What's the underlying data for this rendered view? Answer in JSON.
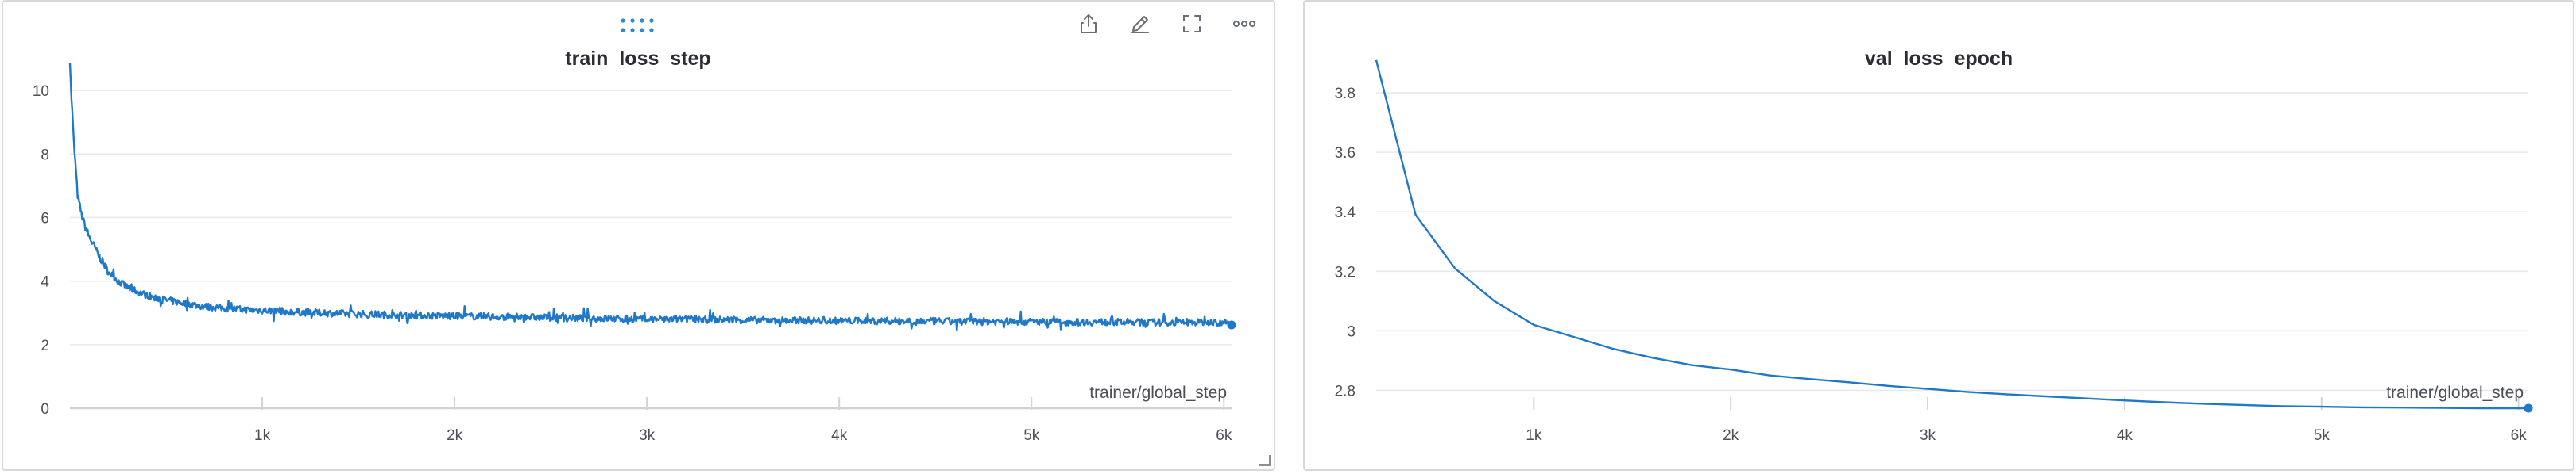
{
  "icons": [
    "drag-handle-icon",
    "share-icon",
    "edit-icon",
    "fullscreen-icon",
    "more-icon",
    "resize-icon"
  ],
  "colors": {
    "series": "#1f78c8",
    "grid": "#e8e9ec",
    "panel_border": "#d7d8dc",
    "accent": "#2a8ad4"
  },
  "chart_data": [
    {
      "type": "line",
      "title": "train_loss_step",
      "xlabel": "trainer/global_step",
      "ylabel": "",
      "xlim": [
        0,
        6040
      ],
      "ylim": [
        0,
        11
      ],
      "x_ticks": [
        1000,
        2000,
        3000,
        4000,
        5000,
        6000
      ],
      "x_tick_labels": [
        "1k",
        "2k",
        "3k",
        "4k",
        "5k",
        "6k"
      ],
      "y_ticks": [
        0,
        2,
        4,
        6,
        8,
        10
      ],
      "y_tick_labels": [
        "0",
        "2",
        "4",
        "6",
        "8",
        "10"
      ],
      "grid": true,
      "legend": "none",
      "series": [
        {
          "x": [
            0,
            20,
            40,
            60,
            80,
            100,
            150,
            200,
            250,
            300,
            400,
            500,
            600,
            700,
            800,
            900,
            1000,
            1200,
            1400,
            1600,
            1800,
            2000,
            2200,
            2400,
            2600,
            2800,
            3000,
            3200,
            3400,
            3600,
            3800,
            4000,
            4200,
            4400,
            4600,
            4800,
            5000,
            5200,
            5400,
            5600,
            5800,
            6000,
            6040
          ],
          "y": [
            10.7,
            8.4,
            6.7,
            6.1,
            5.7,
            5.4,
            4.8,
            4.3,
            4.0,
            3.8,
            3.55,
            3.4,
            3.3,
            3.2,
            3.15,
            3.1,
            3.08,
            3.02,
            2.98,
            2.95,
            2.92,
            2.9,
            2.88,
            2.86,
            2.84,
            2.82,
            2.8,
            2.8,
            2.78,
            2.77,
            2.76,
            2.75,
            2.75,
            2.74,
            2.73,
            2.73,
            2.72,
            2.71,
            2.71,
            2.7,
            2.7,
            2.7,
            2.62
          ]
        }
      ]
    },
    {
      "type": "line",
      "title": "val_loss_epoch",
      "xlabel": "trainer/global_step",
      "ylabel": "",
      "xlim": [
        200,
        6050
      ],
      "ylim": [
        2.74,
        3.92
      ],
      "x_ticks": [
        1000,
        2000,
        3000,
        4000,
        5000,
        6000
      ],
      "x_tick_labels": [
        "1k",
        "2k",
        "3k",
        "4k",
        "5k",
        "6k"
      ],
      "y_ticks": [
        2.8,
        3.0,
        3.2,
        3.4,
        3.6,
        3.8
      ],
      "y_tick_labels": [
        "2.8",
        "3",
        "3.2",
        "3.4",
        "3.6",
        "3.8"
      ],
      "grid": true,
      "legend": "none",
      "series": [
        {
          "x": [
            200,
            400,
            600,
            800,
            1000,
            1200,
            1400,
            1600,
            1800,
            2000,
            2200,
            2400,
            2600,
            2800,
            3000,
            3200,
            3400,
            3600,
            3800,
            4000,
            4200,
            4400,
            4600,
            4800,
            5000,
            5200,
            5400,
            5600,
            5800,
            6050
          ],
          "y": [
            3.91,
            3.39,
            3.21,
            3.1,
            3.02,
            2.98,
            2.94,
            2.91,
            2.885,
            2.87,
            2.85,
            2.838,
            2.827,
            2.815,
            2.805,
            2.795,
            2.787,
            2.78,
            2.773,
            2.766,
            2.76,
            2.755,
            2.751,
            2.747,
            2.745,
            2.743,
            2.742,
            2.741,
            2.74,
            2.74
          ]
        }
      ]
    }
  ]
}
